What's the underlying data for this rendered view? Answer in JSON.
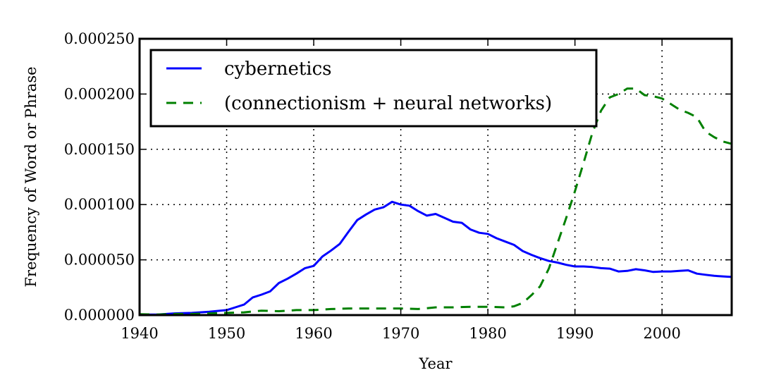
{
  "chart_data": {
    "type": "line",
    "title": "",
    "xlabel": "Year",
    "ylabel": "Frequency of Word or Phrase",
    "xlim": [
      1940,
      2008
    ],
    "ylim": [
      0,
      0.00025
    ],
    "xticks": [
      1940,
      1950,
      1960,
      1970,
      1980,
      1990,
      2000
    ],
    "xtick_labels": [
      "1940",
      "1950",
      "1960",
      "1970",
      "1980",
      "1990",
      "2000"
    ],
    "yticks": [
      0,
      5e-05,
      0.0001,
      0.00015,
      0.0002,
      0.00025
    ],
    "ytick_labels": [
      "0.000000",
      "0.000050",
      "0.000100",
      "0.000150",
      "0.000200",
      "0.000250"
    ],
    "grid": true,
    "legend_position": "top-left",
    "series": [
      {
        "name": "cybernetics",
        "color": "#0000ff",
        "style": "solid",
        "x": [
          1940,
          1942,
          1944,
          1946,
          1948,
          1950,
          1951,
          1952,
          1953,
          1954,
          1955,
          1956,
          1957,
          1958,
          1959,
          1960,
          1961,
          1962,
          1963,
          1964,
          1965,
          1966,
          1967,
          1968,
          1969,
          1970,
          1971,
          1972,
          1973,
          1974,
          1975,
          1976,
          1977,
          1978,
          1979,
          1980,
          1981,
          1982,
          1983,
          1984,
          1985,
          1986,
          1987,
          1988,
          1989,
          1990,
          1991,
          1992,
          1993,
          1994,
          1995,
          1996,
          1997,
          1998,
          1999,
          2000,
          2001,
          2002,
          2003,
          2004,
          2005,
          2006,
          2007,
          2008
        ],
        "y": [
          5e-07,
          5e-07,
          1.5e-06,
          2e-06,
          3e-06,
          4.5e-06,
          7e-06,
          9.5e-06,
          1.6e-05,
          1.85e-05,
          2.15e-05,
          2.9e-05,
          3.3e-05,
          3.75e-05,
          4.25e-05,
          4.45e-05,
          5.3e-05,
          5.85e-05,
          6.45e-05,
          7.55e-05,
          8.6e-05,
          9.1e-05,
          9.55e-05,
          9.75e-05,
          0.0001025,
          0.0001,
          9.9e-05,
          9.4e-05,
          9e-05,
          9.15e-05,
          8.8e-05,
          8.45e-05,
          8.35e-05,
          7.75e-05,
          7.45e-05,
          7.35e-05,
          6.95e-05,
          6.65e-05,
          6.35e-05,
          5.8e-05,
          5.45e-05,
          5.15e-05,
          4.9e-05,
          4.75e-05,
          4.55e-05,
          4.4e-05,
          4.4e-05,
          4.35e-05,
          4.25e-05,
          4.2e-05,
          3.95e-05,
          4e-05,
          4.15e-05,
          4.05e-05,
          3.9e-05,
          3.95e-05,
          3.95e-05,
          4e-05,
          4.05e-05,
          3.75e-05,
          3.65e-05,
          3.55e-05,
          3.5e-05,
          3.45e-05
        ]
      },
      {
        "name": "(connectionism + neural networks)",
        "color": "#008000",
        "style": "dashed",
        "x": [
          1940,
          1942,
          1944,
          1946,
          1948,
          1950,
          1952,
          1954,
          1956,
          1958,
          1960,
          1962,
          1964,
          1966,
          1968,
          1970,
          1972,
          1974,
          1976,
          1978,
          1980,
          1982,
          1983,
          1984,
          1985,
          1986,
          1987,
          1988,
          1989,
          1990,
          1991,
          1992,
          1993,
          1994,
          1995,
          1996,
          1997,
          1998,
          1999,
          2000,
          2001,
          2002,
          2003,
          2004,
          2005,
          2006,
          2007,
          2008
        ],
        "y": [
          8e-07,
          5e-07,
          1e-06,
          1e-06,
          1.5e-06,
          2e-06,
          2.5e-06,
          4e-06,
          3.5e-06,
          4.5e-06,
          4.5e-06,
          5.5e-06,
          6e-06,
          6e-06,
          6e-06,
          6e-06,
          5.5e-06,
          7e-06,
          7e-06,
          7.5e-06,
          7.5e-06,
          7e-06,
          8e-06,
          1.1e-05,
          1.8e-05,
          2.6e-05,
          4.2e-05,
          6.5e-05,
          8.8e-05,
          0.000112,
          0.000138,
          0.000165,
          0.000185,
          0.000197,
          0.0002,
          0.000205,
          0.000205,
          0.000199,
          0.000198,
          0.000196,
          0.000191,
          0.000186,
          0.000183,
          0.000179,
          0.000166,
          0.000161,
          0.000157,
          0.000155
        ]
      }
    ]
  }
}
